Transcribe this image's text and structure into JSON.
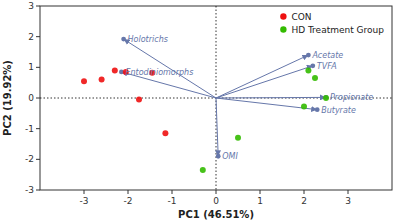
{
  "chart_data": {
    "type": "scatter",
    "xlabel": "PC1 (46.51%)",
    "ylabel": "PC2 (19.92%)",
    "xlim": [
      -4,
      4
    ],
    "ylim": [
      -3,
      3
    ],
    "xticks": [
      -3,
      -2,
      -1,
      0,
      1,
      2,
      3
    ],
    "yticks": [
      -3,
      -2,
      -1,
      0,
      1,
      2,
      3
    ],
    "grid": false,
    "legend": "upper right",
    "series": [
      {
        "name": "CON",
        "color": "#EE1111",
        "x": [
          -3.0,
          -2.6,
          -2.3,
          -2.05,
          -1.75,
          -1.45,
          -1.15
        ],
        "y": [
          0.55,
          0.6,
          0.9,
          0.85,
          -0.05,
          0.82,
          -1.15
        ]
      },
      {
        "name": "HD Treatment Group",
        "color": "#33BB00",
        "x": [
          0.5,
          2.1,
          2.25,
          2.5,
          2.0,
          -0.3
        ],
        "y": [
          -1.3,
          0.9,
          0.65,
          0.0,
          -0.28,
          -2.35
        ]
      }
    ],
    "arrows": {
      "color": "#6677AA",
      "labels": [
        "Acetate",
        "TVFA",
        "Propionate",
        "Butyrate",
        "Holotrichs",
        "Entodiniomorphs",
        "OMI"
      ],
      "x": [
        2.1,
        2.2,
        2.5,
        2.3,
        -2.1,
        -2.15,
        0.05
      ],
      "y": [
        1.4,
        1.05,
        0.02,
        -0.38,
        1.92,
        0.85,
        -1.9
      ]
    }
  }
}
